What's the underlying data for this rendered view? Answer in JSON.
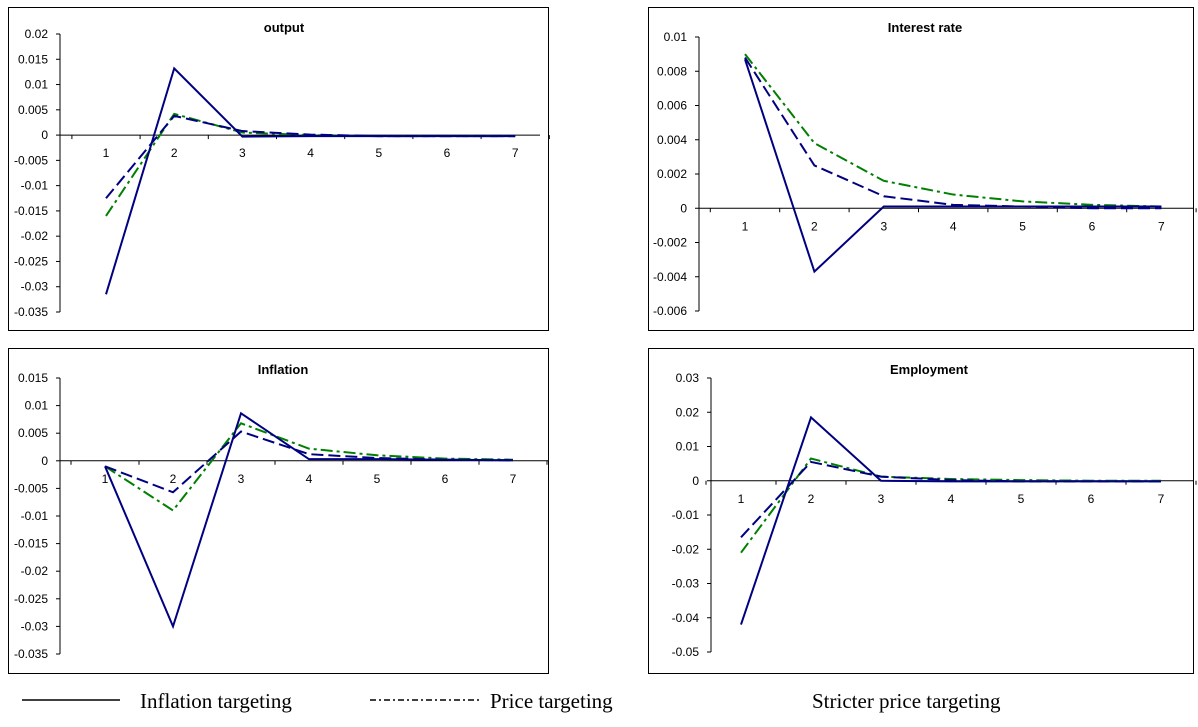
{
  "legend": {
    "inflation": "Inflation targeting",
    "price": "Price targeting",
    "stricter": "Stricter price targeting"
  },
  "chart_data": [
    {
      "type": "line",
      "title": "output",
      "categories": [
        "1",
        "2",
        "3",
        "4",
        "5",
        "6",
        "7"
      ],
      "yticks": [
        0.02,
        0.015,
        0.01,
        0.005,
        0,
        -0.005,
        -0.01,
        -0.015,
        -0.02,
        -0.025,
        -0.03,
        -0.035
      ],
      "ytick_labels": [
        "0.02",
        "0.015",
        "0.01",
        "0.005",
        "0",
        "-0.005",
        "-0.01",
        "-0.015",
        "-0.02",
        "-0.025",
        "-0.03",
        "-0.035"
      ],
      "ylim": [
        -0.035,
        0.02
      ],
      "series": [
        {
          "name": "Inflation targeting",
          "style": "solid",
          "color": "#000080",
          "values": [
            -0.0315,
            0.0132,
            -0.0003,
            -0.0002,
            -0.0002,
            -0.0002,
            -0.0002
          ]
        },
        {
          "name": "Price targeting",
          "style": "dashed",
          "color": "#000080",
          "values": [
            -0.0125,
            0.0038,
            0.0008,
            0.0001,
            -0.0002,
            -0.0002,
            -0.0002
          ]
        },
        {
          "name": "Stricter price targeting",
          "style": "dashdot",
          "color": "#008000",
          "values": [
            -0.016,
            0.0042,
            0.0005,
            0.0,
            -0.0002,
            -0.0002,
            -0.0002
          ]
        }
      ]
    },
    {
      "type": "line",
      "title": "Interest rate",
      "categories": [
        "1",
        "2",
        "3",
        "4",
        "5",
        "6",
        "7"
      ],
      "yticks": [
        0.01,
        0.008,
        0.006,
        0.004,
        0.002,
        0,
        -0.002,
        -0.004,
        -0.006
      ],
      "ytick_labels": [
        "0.01",
        "0.008",
        "0.006",
        "0.004",
        "0.002",
        "0",
        "-0.002",
        "-0.004",
        "-0.006"
      ],
      "ylim": [
        -0.006,
        0.01
      ],
      "series": [
        {
          "name": "Inflation targeting",
          "style": "solid",
          "color": "#000080",
          "values": [
            0.0087,
            -0.0037,
            0.0001,
            0.0001,
            0.0001,
            0.0001,
            0.0001
          ]
        },
        {
          "name": "Price targeting",
          "style": "dashed",
          "color": "#000080",
          "values": [
            0.0088,
            0.0025,
            0.0007,
            0.0002,
            0.0001,
            0.0,
            0.0
          ]
        },
        {
          "name": "Stricter price targeting",
          "style": "dashdot",
          "color": "#008000",
          "values": [
            0.009,
            0.0038,
            0.0016,
            0.0008,
            0.0004,
            0.0002,
            0.0001
          ]
        }
      ]
    },
    {
      "type": "line",
      "title": "Inflation",
      "categories": [
        "1",
        "2",
        "3",
        "4",
        "5",
        "6",
        "7"
      ],
      "yticks": [
        0.015,
        0.01,
        0.005,
        0,
        -0.005,
        -0.01,
        -0.015,
        -0.02,
        -0.025,
        -0.03,
        -0.035
      ],
      "ytick_labels": [
        "0.015",
        "0.01",
        "0.005",
        "0",
        "-0.005",
        "-0.01",
        "-0.015",
        "-0.02",
        "-0.025",
        "-0.03",
        "-0.035"
      ],
      "ylim": [
        -0.035,
        0.015
      ],
      "series": [
        {
          "name": "Inflation targeting",
          "style": "solid",
          "color": "#000080",
          "values": [
            -0.001,
            -0.03,
            0.0086,
            0.0003,
            0.0003,
            0.0002,
            0.0001
          ]
        },
        {
          "name": "Price targeting",
          "style": "dashed",
          "color": "#000080",
          "values": [
            -0.001,
            -0.0057,
            0.0053,
            0.0012,
            0.0005,
            0.0002,
            0.0001
          ]
        },
        {
          "name": "Stricter price targeting",
          "style": "dashdot",
          "color": "#008000",
          "values": [
            -0.001,
            -0.009,
            0.0068,
            0.0022,
            0.001,
            0.0004,
            0.0002
          ]
        }
      ]
    },
    {
      "type": "line",
      "title": "Employment",
      "categories": [
        "1",
        "2",
        "3",
        "4",
        "5",
        "6",
        "7"
      ],
      "yticks": [
        0.03,
        0.02,
        0.01,
        0,
        -0.01,
        -0.02,
        -0.03,
        -0.04,
        -0.05
      ],
      "ytick_labels": [
        "0.03",
        "0.02",
        "0.01",
        "0",
        "-0.01",
        "-0.02",
        "-0.03",
        "-0.04",
        "-0.05"
      ],
      "ylim": [
        -0.05,
        0.03
      ],
      "series": [
        {
          "name": "Inflation targeting",
          "style": "solid",
          "color": "#000080",
          "values": [
            -0.042,
            0.0185,
            0.0,
            -0.0002,
            -0.0002,
            -0.0002,
            -0.0002
          ]
        },
        {
          "name": "Price targeting",
          "style": "dashed",
          "color": "#000080",
          "values": [
            -0.0165,
            0.0055,
            0.0012,
            0.0002,
            -0.0002,
            -0.0002,
            -0.0002
          ]
        },
        {
          "name": "Stricter price targeting",
          "style": "dashdot",
          "color": "#008000",
          "values": [
            -0.021,
            0.0065,
            0.0012,
            0.0005,
            0.0002,
            0.0,
            0.0
          ]
        }
      ]
    }
  ]
}
